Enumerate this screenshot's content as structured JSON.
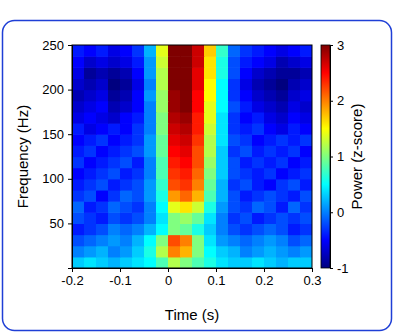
{
  "chart_data": {
    "type": "heatmap",
    "x_label": "Time (s)",
    "y_label": "Frequency (Hz)",
    "xlim": [
      -0.2,
      0.3
    ],
    "xticks": [
      -0.2,
      -0.1,
      0,
      0.1,
      0.2,
      0.3
    ],
    "ylim": [
      0,
      250
    ],
    "yticks": [
      50,
      100,
      150,
      200,
      250
    ],
    "x_bins": [
      -0.2,
      -0.175,
      -0.15,
      -0.125,
      -0.1,
      -0.075,
      -0.05,
      -0.025,
      0,
      0.025,
      0.05,
      0.075,
      0.1,
      0.125,
      0.15,
      0.175,
      0.2,
      0.225,
      0.25,
      0.275,
      0.3
    ],
    "y_bins": [
      0,
      12.5,
      25,
      37.5,
      50,
      62.5,
      75,
      87.5,
      100,
      112.5,
      125,
      137.5,
      150,
      162.5,
      175,
      187.5,
      200,
      212.5,
      225,
      237.5,
      250
    ],
    "z": [
      [
        0.3,
        0.4,
        0.3,
        0.2,
        0.3,
        0.4,
        0.5,
        0.8,
        1.2,
        1.0,
        0.8,
        0.6,
        0.4,
        0.3,
        0.3,
        0.4,
        0.3,
        0.2,
        0.3,
        0.3
      ],
      [
        0.0,
        0.1,
        0.2,
        0.0,
        0.1,
        0.3,
        0.6,
        1.2,
        2.0,
        1.8,
        1.0,
        0.5,
        0.3,
        0.2,
        0.0,
        0.1,
        0.2,
        0.1,
        0.0,
        0.1
      ],
      [
        -0.2,
        -0.1,
        0.0,
        0.1,
        0.0,
        0.2,
        0.5,
        1.0,
        2.2,
        2.0,
        1.0,
        0.4,
        0.1,
        0.0,
        -0.1,
        0.0,
        0.1,
        0.0,
        -0.2,
        -0.1
      ],
      [
        -0.4,
        -0.3,
        -0.2,
        0.0,
        -0.1,
        0.0,
        0.2,
        0.5,
        1.0,
        0.9,
        0.6,
        0.3,
        0.0,
        -0.2,
        -0.3,
        -0.2,
        -0.1,
        -0.2,
        -0.4,
        -0.3
      ],
      [
        -0.2,
        -0.3,
        -0.4,
        -0.2,
        -0.3,
        -0.2,
        0.0,
        0.4,
        1.0,
        1.1,
        0.9,
        0.4,
        0.0,
        -0.3,
        -0.2,
        -0.4,
        -0.3,
        -0.2,
        -0.3,
        -0.2
      ],
      [
        -0.1,
        -0.4,
        -0.3,
        -0.1,
        -0.2,
        -0.3,
        0.0,
        0.5,
        1.4,
        1.6,
        1.3,
        0.6,
        0.1,
        -0.2,
        -0.3,
        -0.1,
        -0.2,
        -0.4,
        -0.1,
        -0.3
      ],
      [
        -0.3,
        -0.2,
        -0.5,
        -0.3,
        -0.1,
        -0.2,
        0.1,
        0.6,
        1.9,
        2.1,
        1.8,
        0.8,
        0.2,
        -0.2,
        -0.4,
        -0.3,
        -0.2,
        -0.3,
        -0.4,
        -0.2
      ],
      [
        -0.4,
        -0.3,
        -0.2,
        -0.4,
        -0.3,
        -0.2,
        0.1,
        0.7,
        2.2,
        2.3,
        2.0,
        0.9,
        0.2,
        -0.3,
        -0.2,
        -0.4,
        -0.5,
        -0.3,
        -0.2,
        -0.4
      ],
      [
        -0.5,
        -0.4,
        -0.3,
        -0.2,
        -0.4,
        -0.3,
        0.0,
        0.8,
        2.3,
        2.4,
        2.1,
        1.0,
        0.3,
        -0.2,
        -0.3,
        -0.4,
        -0.3,
        -0.5,
        -0.4,
        -0.3
      ],
      [
        -0.3,
        -0.5,
        -0.4,
        -0.3,
        -0.2,
        -0.4,
        0.0,
        0.8,
        2.4,
        2.5,
        2.2,
        1.1,
        0.3,
        -0.2,
        -0.4,
        -0.3,
        -0.4,
        -0.3,
        -0.5,
        -0.4
      ],
      [
        -0.4,
        -0.3,
        -0.5,
        -0.4,
        -0.3,
        -0.2,
        0.1,
        0.9,
        2.5,
        2.6,
        2.2,
        1.2,
        0.3,
        -0.3,
        -0.2,
        -0.4,
        -0.3,
        -0.4,
        -0.3,
        -0.5
      ],
      [
        -0.5,
        -0.4,
        -0.3,
        -0.5,
        -0.4,
        -0.3,
        0.1,
        0.9,
        2.6,
        2.7,
        2.3,
        1.2,
        0.4,
        -0.2,
        -0.3,
        -0.5,
        -0.4,
        -0.3,
        -0.4,
        -0.3
      ],
      [
        -0.4,
        -0.6,
        -0.5,
        -0.4,
        -0.5,
        -0.3,
        0.0,
        1.0,
        2.7,
        2.8,
        2.4,
        1.3,
        0.4,
        -0.3,
        -0.4,
        -0.3,
        -0.5,
        -0.6,
        -0.4,
        -0.5
      ],
      [
        -0.6,
        -0.5,
        -0.6,
        -0.7,
        -0.5,
        -0.4,
        0.0,
        1.0,
        2.8,
        2.9,
        2.4,
        1.4,
        0.4,
        -0.3,
        -0.5,
        -0.4,
        -0.6,
        -0.7,
        -0.5,
        -0.6
      ],
      [
        -0.7,
        -0.6,
        -0.5,
        -0.8,
        -0.7,
        -0.5,
        0.0,
        1.1,
        2.9,
        3.0,
        2.5,
        1.4,
        0.5,
        -0.2,
        -0.4,
        -0.6,
        -0.7,
        -0.8,
        -0.6,
        -0.7
      ],
      [
        -0.8,
        -0.7,
        -0.6,
        -0.9,
        -0.8,
        -0.5,
        0.1,
        1.1,
        2.9,
        3.0,
        2.5,
        1.5,
        0.5,
        -0.3,
        -0.5,
        -0.7,
        -0.8,
        -0.9,
        -0.7,
        -0.6
      ],
      [
        -0.7,
        -0.8,
        -0.7,
        -1.0,
        -0.9,
        -0.6,
        0.0,
        1.2,
        3.0,
        3.0,
        2.6,
        1.5,
        0.5,
        -0.3,
        -0.6,
        -0.8,
        -0.9,
        -1.0,
        -0.8,
        -0.7
      ],
      [
        -0.6,
        -0.9,
        -0.8,
        -0.9,
        -0.8,
        -0.5,
        0.1,
        1.2,
        3.0,
        3.0,
        2.6,
        1.6,
        0.6,
        -0.2,
        -0.5,
        -0.7,
        -0.8,
        -0.9,
        -0.9,
        -0.8
      ],
      [
        -0.5,
        -0.7,
        -0.6,
        -0.7,
        -0.6,
        -0.4,
        0.1,
        1.3,
        3.0,
        3.0,
        2.7,
        1.6,
        0.6,
        -0.2,
        -0.4,
        -0.5,
        -0.6,
        -0.8,
        -0.7,
        -0.6
      ],
      [
        -0.4,
        -0.5,
        -0.4,
        -0.6,
        -0.5,
        -0.3,
        0.2,
        1.4,
        3.0,
        3.0,
        2.7,
        1.7,
        0.7,
        -0.1,
        -0.3,
        -0.4,
        -0.5,
        -0.6,
        -0.5,
        -0.4
      ]
    ],
    "colorbar": {
      "label": "Power (z-score)",
      "range": [
        -1,
        3
      ],
      "ticks": [
        -1,
        0,
        1,
        2,
        3
      ]
    }
  }
}
